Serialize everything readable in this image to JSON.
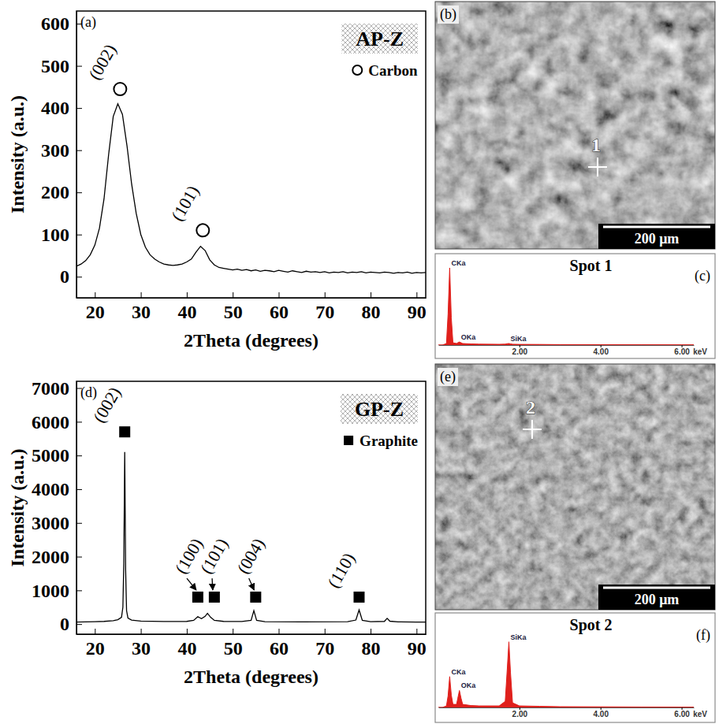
{
  "chart_data": [
    {
      "type": "line",
      "panel": "(a)",
      "title": "AP-Z",
      "xlabel": "2Theta (degrees)",
      "ylabel": "Intensity (a.u.)",
      "xlim": [
        16,
        92
      ],
      "ylim": [
        -50,
        630
      ],
      "xticks": [
        20,
        30,
        40,
        50,
        60,
        70,
        80,
        90
      ],
      "yticks": [
        0,
        100,
        200,
        300,
        400,
        500,
        600
      ],
      "x": [
        16,
        17,
        18,
        19,
        20,
        21,
        22,
        23,
        24,
        25,
        26,
        27,
        28,
        29,
        30,
        31,
        32,
        33,
        34,
        35,
        36,
        37,
        38,
        39,
        40,
        41,
        42,
        43,
        44,
        45,
        46,
        47,
        48,
        49,
        50,
        51,
        52,
        53,
        54,
        55,
        56,
        57,
        58,
        59,
        60,
        61,
        62,
        63,
        64,
        65,
        66,
        67,
        68,
        69,
        70,
        71,
        72,
        73,
        74,
        75,
        76,
        77,
        78,
        79,
        80,
        81,
        82,
        83,
        84,
        85,
        86,
        87,
        88,
        89,
        90,
        91,
        92
      ],
      "series": [
        {
          "color": "#000000",
          "values": [
            25,
            30,
            38,
            52,
            75,
            115,
            185,
            290,
            380,
            410,
            385,
            310,
            220,
            150,
            100,
            70,
            52,
            42,
            35,
            30,
            28,
            27,
            28,
            30,
            35,
            42,
            58,
            72,
            62,
            40,
            28,
            22,
            20,
            18,
            16,
            18,
            15,
            17,
            14,
            16,
            13,
            15,
            14,
            12,
            15,
            13,
            11,
            14,
            12,
            10,
            13,
            11,
            12,
            10,
            12,
            9,
            11,
            10,
            12,
            9,
            11,
            10,
            12,
            9,
            11,
            10,
            9,
            11,
            10,
            8,
            10,
            9,
            11,
            8,
            10,
            9,
            10
          ]
        }
      ],
      "markers": {
        "name": "Carbon",
        "marker": "circle",
        "points": [
          {
            "label": "(002)",
            "x": 25.5,
            "y": 445
          },
          {
            "label": "(101)",
            "x": 43.5,
            "y": 110
          }
        ]
      },
      "legend": "upper right"
    },
    {
      "type": "area",
      "panel": "(c)",
      "title": "Spot 1",
      "xlabel": "keV",
      "xlim": [
        0,
        6.3
      ],
      "ylim": [
        0,
        100
      ],
      "xticks": [
        {
          "value": 2,
          "label": "2.00"
        },
        {
          "value": 4,
          "label": "4.00"
        },
        {
          "value": 6,
          "label": "6.00"
        }
      ],
      "tick_labels": "x",
      "x": [
        0,
        0.1,
        0.2,
        0.24,
        0.28,
        0.32,
        0.36,
        0.45,
        0.48,
        0.52,
        0.56,
        0.6,
        0.8,
        1.0,
        1.5,
        1.65,
        1.7,
        1.74,
        1.78,
        1.83,
        2.0,
        2.5,
        3,
        4,
        5,
        6,
        6.3
      ],
      "series": [
        {
          "color": "#e0201c",
          "values": [
            0,
            0,
            2,
            40,
            100,
            35,
            3,
            2,
            3,
            4,
            3,
            2,
            1.5,
            1.2,
            1,
            1.2,
            1.8,
            2,
            1.6,
            1.1,
            0.9,
            0.8,
            0.6,
            0.5,
            0.4,
            0.3,
            0.3
          ]
        }
      ],
      "annotations": [
        {
          "text": "CKa",
          "x": 0.28,
          "y": 100
        },
        {
          "text": "OKa",
          "x": 0.52,
          "y": 4
        },
        {
          "text": "SiKa",
          "x": 1.74,
          "y": 2
        }
      ]
    },
    {
      "type": "line",
      "panel": "(d)",
      "title": "GP-Z",
      "xlabel": "2Theta (degrees)",
      "ylabel": "Intensity (a.u.)",
      "xlim": [
        16,
        92
      ],
      "ylim": [
        -300,
        7200
      ],
      "xticks": [
        20,
        30,
        40,
        50,
        60,
        70,
        80,
        90
      ],
      "yticks": [
        0,
        1000,
        2000,
        3000,
        4000,
        5000,
        6000,
        7000
      ],
      "x": [
        16,
        18,
        20,
        22,
        24,
        25,
        25.8,
        26.1,
        26.3,
        26.5,
        26.7,
        26.9,
        27.2,
        28,
        30,
        35,
        40,
        41.5,
        42.4,
        43.2,
        44,
        44.5,
        45.2,
        46,
        48,
        52,
        54,
        54.6,
        55.2,
        57,
        65,
        75,
        76.8,
        77.5,
        78.2,
        80,
        83,
        83.6,
        84.2,
        86,
        90,
        92
      ],
      "series": [
        {
          "color": "#000000",
          "values": [
            60,
            65,
            70,
            80,
            100,
            130,
            200,
            500,
            1800,
            5100,
            1600,
            400,
            180,
            120,
            90,
            75,
            80,
            110,
            220,
            160,
            230,
            320,
            200,
            110,
            80,
            75,
            110,
            400,
            110,
            70,
            65,
            70,
            120,
            420,
            110,
            70,
            80,
            170,
            85,
            65,
            60,
            60
          ]
        }
      ],
      "markers": {
        "name": "Graphite",
        "marker": "square",
        "points": [
          {
            "label": "(002)",
            "x": 26.5,
            "y": 5700
          },
          {
            "label": "(100)",
            "x": 42.4,
            "y": 800,
            "label_x": 39.5,
            "label_y": 1450
          },
          {
            "label": "(101)",
            "x": 46,
            "y": 800,
            "label_x": 45,
            "label_y": 1450
          },
          {
            "label": "(004)",
            "x": 55,
            "y": 800,
            "label_x": 53,
            "label_y": 1450
          },
          {
            "label": "(110)",
            "x": 77.5,
            "y": 800
          }
        ]
      },
      "legend": "upper right"
    },
    {
      "type": "area",
      "panel": "(f)",
      "title": "Spot 2",
      "xlabel": "keV",
      "xlim": [
        0,
        6.3
      ],
      "ylim": [
        0,
        100
      ],
      "xticks": [
        {
          "value": 2,
          "label": "2.00"
        },
        {
          "value": 4,
          "label": "4.00"
        },
        {
          "value": 6,
          "label": "6.00"
        }
      ],
      "tick_labels": "x",
      "x": [
        0,
        0.1,
        0.2,
        0.24,
        0.28,
        0.32,
        0.36,
        0.45,
        0.48,
        0.52,
        0.56,
        0.6,
        0.8,
        1.0,
        1.5,
        1.65,
        1.7,
        1.74,
        1.78,
        1.83,
        2.0,
        2.5,
        3,
        4,
        5,
        6,
        6.3
      ],
      "series": [
        {
          "color": "#e0201c",
          "values": [
            0,
            0,
            2,
            15,
            40,
            16,
            4,
            4,
            12,
            22,
            12,
            4,
            2.5,
            2,
            2,
            8,
            50,
            85,
            45,
            6,
            2,
            1.5,
            1,
            0.8,
            0.6,
            0.5,
            0.5
          ]
        }
      ],
      "annotations": [
        {
          "text": "CKa",
          "x": 0.28,
          "y": 40
        },
        {
          "text": "OKa",
          "x": 0.52,
          "y": 22
        },
        {
          "text": "SiKa",
          "x": 1.74,
          "y": 85
        }
      ]
    }
  ],
  "images": [
    {
      "panel": "(b)",
      "spot": "1",
      "scale_bar": "200 μm"
    },
    {
      "panel": "(e)",
      "spot": "2",
      "scale_bar": "200 μm"
    }
  ]
}
